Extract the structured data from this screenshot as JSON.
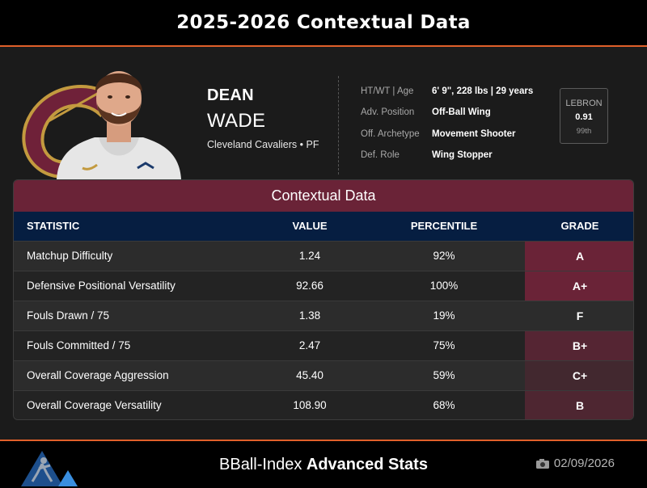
{
  "title": "2025-2026 Contextual Data",
  "player": {
    "first_name": "DEAN",
    "last_name": "WADE",
    "team_position": "Cleveland Cavaliers • PF"
  },
  "attributes": [
    {
      "label": "HT/WT | Age",
      "value": "6' 9\", 228 lbs | 29 years"
    },
    {
      "label": "Adv. Position",
      "value": "Off-Ball Wing"
    },
    {
      "label": "Off. Archetype",
      "value": "Movement Shooter"
    },
    {
      "label": "Def. Role",
      "value": "Wing Stopper"
    }
  ],
  "lebron": {
    "label": "LEBRON",
    "value": "0.91",
    "percentile": "99th"
  },
  "card": {
    "title": "Contextual Data",
    "columns": [
      "STATISTIC",
      "VALUE",
      "PERCENTILE",
      "GRADE"
    ],
    "rows": [
      {
        "statistic": "Matchup Difficulty",
        "value": "1.24",
        "percentile": "92%",
        "grade": "A",
        "grade_color": "#6a2337"
      },
      {
        "statistic": "Defensive Positional Versatility",
        "value": "92.66",
        "percentile": "100%",
        "grade": "A+",
        "grade_color": "#6a2337"
      },
      {
        "statistic": "Fouls Drawn / 75",
        "value": "1.38",
        "percentile": "19%",
        "grade": "F",
        "grade_color": "#2c2c2c"
      },
      {
        "statistic": "Fouls Committed / 75",
        "value": "2.47",
        "percentile": "75%",
        "grade": "B+",
        "grade_color": "#552533"
      },
      {
        "statistic": "Overall Coverage Aggression",
        "value": "45.40",
        "percentile": "59%",
        "grade": "C+",
        "grade_color": "#42282f"
      },
      {
        "statistic": "Overall Coverage Versatility",
        "value": "108.90",
        "percentile": "68%",
        "grade": "B",
        "grade_color": "#4e2631"
      }
    ]
  },
  "footer": {
    "brand_prefix": "BBall-Index",
    "brand_suffix": "Advanced Stats",
    "date": "02/09/2026"
  },
  "colors": {
    "accent": "#e0602a",
    "wine": "#6a2337",
    "navy": "#061e41"
  },
  "icons": {
    "team_logo": "cavaliers-c-logo",
    "footer_logo": "bball-index-logo",
    "date_icon": "camera-icon"
  }
}
